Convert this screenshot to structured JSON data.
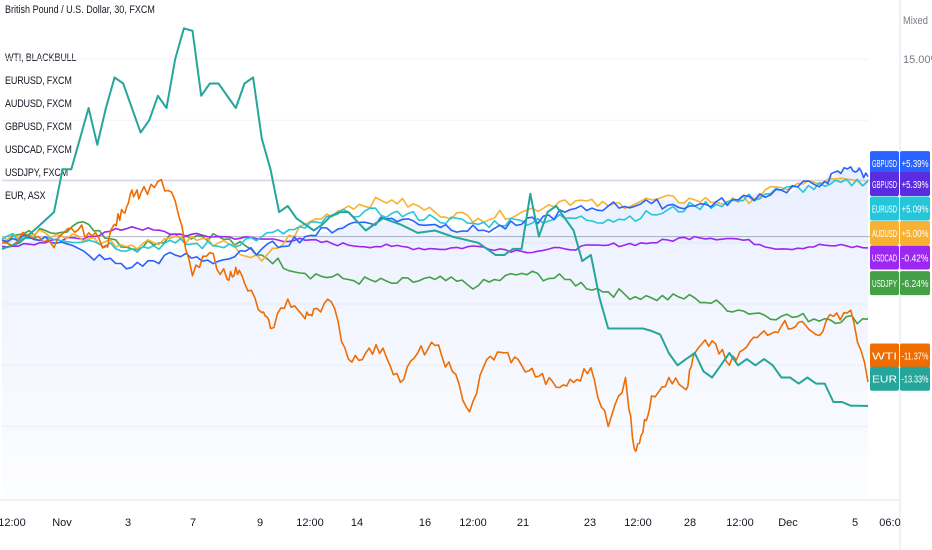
{
  "header": {
    "title": "British Pound / U.S. Dollar, 30, FXCM",
    "scale_mode": "Mixed"
  },
  "colors": {
    "WTI": "#ef6c00",
    "EUR": "#26a69a",
    "EURUSD": "#26c6da",
    "AUDUSD": "#f7b234",
    "GBPUSD": "#2962ff",
    "USDCAD": "#9c27f0",
    "USDJPY": "#43a047",
    "main": "#2a55d8"
  },
  "chart_data": {
    "type": "line",
    "y_unit": "percent",
    "ylim": [
      -21,
      19
    ],
    "y_ticks": [
      15.0
    ],
    "y_tick_labels": [
      "15.00%"
    ],
    "x_ticks": [
      "12:00",
      "Nov",
      "3",
      "7",
      "9",
      "12:00",
      "14",
      "16",
      "12:00",
      "21",
      "23",
      "12:00",
      "28",
      "12:00",
      "Dec",
      "5",
      "06:0"
    ],
    "legend_placement": "top-left",
    "legend": [
      "WTI, BLACKBULL",
      "EURUSD, FXCM",
      "AUDUSD, FXCM",
      "GBPUSD, FXCM",
      "USDCAD, FXCM",
      "USDJPY, FXCM",
      "EUR, ASX"
    ],
    "series": [
      {
        "name": "WTI",
        "x": [
          0,
          3,
          6,
          8,
          10,
          12,
          13,
          14,
          15,
          16,
          18,
          20,
          22,
          24,
          26,
          27,
          28,
          30,
          31,
          33,
          35,
          36,
          38,
          40,
          42,
          44,
          46,
          48,
          50,
          52,
          54,
          56,
          58,
          60,
          62,
          64,
          66,
          68,
          70,
          72,
          73,
          74,
          75,
          77,
          79,
          80,
          82,
          84,
          86,
          88,
          90,
          92,
          94,
          96,
          98,
          100
        ],
        "y": [
          0.0,
          0.6,
          -0.4,
          1.2,
          0.8,
          -0.2,
          1.5,
          2.5,
          4.3,
          4.0,
          5.0,
          3.4,
          -2.7,
          -0.8,
          -3.0,
          -2.0,
          -3.3,
          -5.7,
          -7.0,
          -4.6,
          -6.2,
          -5.4,
          -4.8,
          -9.5,
          -9.0,
          -8.6,
          -11.4,
          -9.0,
          -8.4,
          -10.5,
          -13.8,
          -9.5,
          -9.0,
          -10.0,
          -10.9,
          -11.8,
          -11.4,
          -10.2,
          -15.0,
          -11.0,
          -16.8,
          -15.5,
          -12.5,
          -11.0,
          -12.0,
          -9.0,
          -8.0,
          -10.0,
          -8.5,
          -7.2,
          -6.8,
          -6.5,
          -7.5,
          -6.0,
          -5.5,
          -11.37
        ]
      },
      {
        "name": "EUR",
        "x": [
          0,
          2,
          4,
          6,
          7,
          8,
          10,
          11,
          12,
          13,
          14,
          15,
          16,
          17,
          18,
          19,
          20,
          21,
          22,
          23,
          24,
          25,
          27,
          28,
          29,
          30,
          31,
          32,
          33,
          34,
          35,
          36,
          37,
          38,
          39,
          40,
          42,
          44,
          46,
          48,
          50,
          52,
          55,
          57,
          58,
          59,
          60,
          61,
          62,
          63,
          64,
          65,
          66,
          67,
          68,
          69,
          70,
          71,
          72,
          73,
          74,
          75,
          76,
          77,
          78,
          79,
          80,
          81,
          82,
          83,
          84,
          85,
          86,
          87,
          88,
          89,
          90,
          91,
          92,
          93,
          94,
          95,
          96,
          97,
          98,
          99,
          100
        ],
        "y": [
          -0.5,
          0.0,
          1.2,
          2.5,
          6.0,
          6.0,
          11.0,
          8.0,
          11.0,
          13.5,
          13.0,
          11.0,
          9.0,
          10.0,
          12.0,
          11.0,
          15.0,
          17.5,
          17.3,
          12.0,
          13.0,
          13.0,
          11.0,
          13.0,
          13.5,
          8.5,
          6.0,
          2.5,
          3.0,
          2.0,
          1.5,
          1.0,
          1.5,
          2.2,
          2.5,
          2.5,
          1.0,
          2.0,
          1.5,
          0.8,
          1.0,
          0.5,
          0.0,
          -1.0,
          -1.0,
          -0.5,
          -0.5,
          4.0,
          0.5,
          2.5,
          3.0,
          2.0,
          1.0,
          -1.5,
          -1.0,
          -4.5,
          -7.0,
          -7.0,
          -7.0,
          -7.0,
          -7.0,
          -7.2,
          -7.5,
          -9.0,
          -10.0,
          -9.5,
          -9.0,
          -10.5,
          -11.0,
          -10.0,
          -9.0,
          -10.0,
          -9.5,
          -10.0,
          -9.5,
          -10.0,
          -11.0,
          -11.0,
          -11.5,
          -11.0,
          -11.5,
          -11.5,
          -13.0,
          -13.0,
          -13.3,
          -13.3,
          -13.33
        ]
      },
      {
        "name": "EURUSD",
        "x": [
          0,
          5,
          10,
          15,
          20,
          25,
          30,
          35,
          40,
          45,
          50,
          55,
          60,
          65,
          70,
          75,
          80,
          85,
          90,
          95,
          100
        ],
        "y": [
          0.3,
          0.5,
          0.2,
          -0.5,
          0.0,
          -0.3,
          0.5,
          1.2,
          2.5,
          2.4,
          2.0,
          1.5,
          1.8,
          2.0,
          1.9,
          2.3,
          3.0,
          3.4,
          4.3,
          4.6,
          5.09
        ]
      },
      {
        "name": "AUDUSD",
        "x": [
          0,
          5,
          10,
          15,
          20,
          25,
          30,
          35,
          40,
          45,
          50,
          55,
          60,
          65,
          70,
          75,
          80,
          85,
          90,
          95,
          100
        ],
        "y": [
          0.4,
          0.8,
          0.3,
          -0.2,
          0.5,
          0.0,
          -1.5,
          1.5,
          3.0,
          3.5,
          2.5,
          2.0,
          2.5,
          3.5,
          3.0,
          3.5,
          3.5,
          3.3,
          4.5,
          5.0,
          5.0
        ]
      },
      {
        "name": "GBPUSD",
        "x": [
          0,
          5,
          10,
          15,
          20,
          25,
          30,
          35,
          40,
          45,
          50,
          55,
          60,
          65,
          70,
          75,
          80,
          85,
          90,
          95,
          98,
          100
        ],
        "y": [
          0.2,
          0.5,
          -1.0,
          -2.0,
          -1.0,
          -1.5,
          -0.5,
          0.5,
          1.5,
          2.0,
          1.5,
          1.0,
          1.5,
          2.5,
          3.0,
          3.2,
          3.0,
          3.5,
          4.3,
          5.0,
          6.2,
          5.39
        ]
      },
      {
        "name": "USDCAD",
        "x": [
          0,
          5,
          10,
          15,
          20,
          25,
          30,
          35,
          40,
          45,
          50,
          55,
          60,
          65,
          70,
          75,
          80,
          85,
          90,
          95,
          100
        ],
        "y": [
          -0.3,
          0.0,
          0.5,
          1.3,
          0.7,
          0.5,
          0.3,
          0.2,
          -0.2,
          -0.3,
          -0.5,
          -0.3,
          -0.7,
          -0.5,
          -0.2,
          0.0,
          0.5,
          0.3,
          -0.5,
          -0.2,
          -0.42
        ]
      },
      {
        "name": "USDJPY",
        "x": [
          0,
          5,
          10,
          15,
          20,
          25,
          30,
          35,
          40,
          45,
          50,
          55,
          60,
          65,
          70,
          75,
          80,
          85,
          90,
          95,
          100
        ],
        "y": [
          0.2,
          1.0,
          1.5,
          -0.5,
          0.7,
          0.5,
          -1.0,
          -2.5,
          -3.0,
          -3.3,
          -3.0,
          -3.5,
          -2.5,
          -3.0,
          -4.0,
          -4.5,
          -4.5,
          -5.5,
          -6.0,
          -6.2,
          -6.24
        ]
      }
    ],
    "tags": [
      {
        "label": "GBPUSD",
        "value": "+5.39%",
        "color": "#2962ff",
        "y": 6.5
      },
      {
        "label": "GBPUSD",
        "value": "+5.39%",
        "color": "#5b2be0",
        "y": 4.8
      },
      {
        "label": "EURUSD",
        "value": "+5.09%",
        "color": "#26c6da",
        "y": 2.8
      },
      {
        "label": "AUDUSD",
        "value": "+5.00%",
        "color": "#f7b234",
        "y": 0.8
      },
      {
        "label": "USDCAD",
        "value": "-0.42%",
        "color": "#9c27f0",
        "y": -1.2
      },
      {
        "label": "USDJPY",
        "value": "-6.24%",
        "color": "#43a047",
        "y": -3.3
      },
      {
        "label": "WTI",
        "value": "-11.37%",
        "color": "#ef6c00",
        "y": -9.2
      },
      {
        "label": "EUR",
        "value": "-13.33%",
        "color": "#26a69a",
        "y": -11.1
      }
    ]
  }
}
